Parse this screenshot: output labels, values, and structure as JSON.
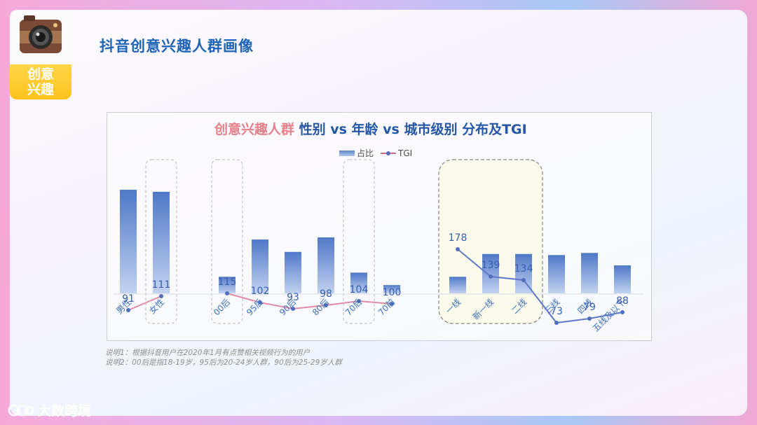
{
  "header": {
    "logo_line1": "创意",
    "logo_line2": "兴趣",
    "title": "抖音创意兴趣人群画像"
  },
  "chart_title": {
    "highlight": "创意兴趣人群",
    "rest": " 性别 vs 年龄 vs 城市级别 分布及TGI"
  },
  "legend": {
    "bar_label": "占比",
    "line_label": "TGI"
  },
  "notes": [
    "说明1：根据抖音用户在2020年1月有点赞相关视频行为的用户",
    "说明2：00后是指18-19岁，95后为20-24岁人群，90后为25-29岁人群"
  ],
  "watermark": "大数跨境",
  "colors": {
    "title_blue": "#1e63b6",
    "highlight_pink": "#e77f86",
    "bar_top": "#5a84d0",
    "bar_bottom": "#b4c6ea",
    "tgi_pink_line": "#e08aa5",
    "tgi_blue_line": "#5f78c8",
    "tgi_point": "#4f6fbf"
  },
  "chart_data": {
    "type": "bar",
    "title": "创意兴趣人群 性别 vs 年龄 vs 城市级别 分布及TGI",
    "groups": [
      {
        "name": "gender",
        "categories": [
          "男性",
          "女性"
        ],
        "share": [
          50,
          49
        ],
        "tgi": [
          91,
          111
        ]
      },
      {
        "name": "age",
        "categories": [
          "00后",
          "95后",
          "90后",
          "80后",
          "70后",
          "70前"
        ],
        "share": [
          8,
          26,
          20,
          27,
          10,
          4
        ],
        "tgi": [
          115,
          102,
          93,
          98,
          104,
          100
        ]
      },
      {
        "name": "city",
        "categories": [
          "一线",
          "新一线",
          "二线",
          "三线",
          "四线",
          "五线及以下"
        ],
        "share": [
          8,
          19,
          19,
          18.5,
          19.5,
          13.5
        ],
        "tgi": [
          178,
          139,
          134,
          73,
          79,
          88
        ]
      }
    ],
    "series": [
      {
        "name": "占比",
        "kind": "bar"
      },
      {
        "name": "TGI",
        "kind": "line"
      }
    ],
    "highlighted_categories": [
      "女性",
      "00后",
      "70后"
    ],
    "highlighted_city_group": [
      "一线",
      "新一线",
      "二线"
    ],
    "legend_position": "top-center"
  }
}
